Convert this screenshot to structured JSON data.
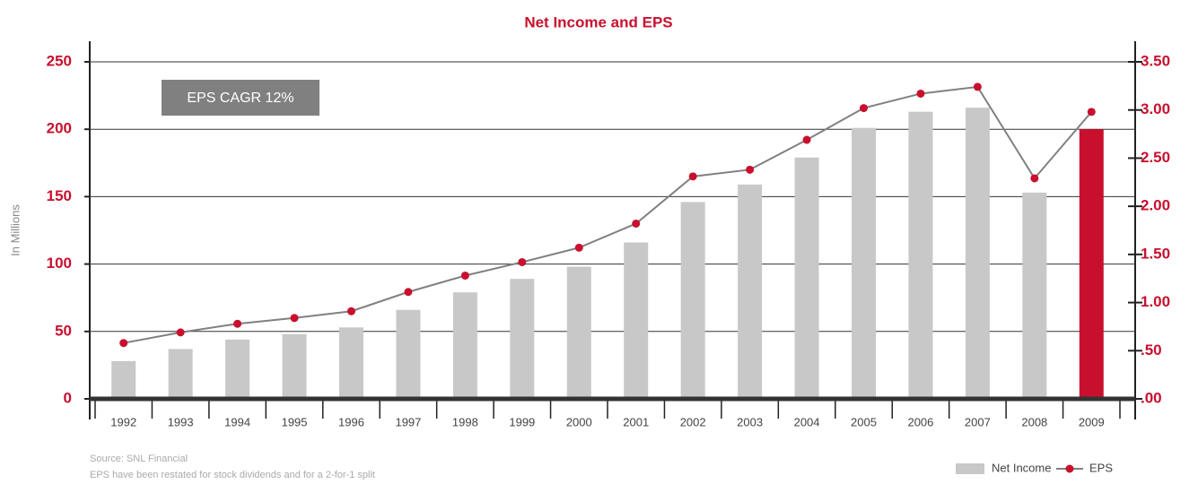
{
  "chart_data": {
    "type": "bar_line",
    "title": "Net Income and EPS",
    "y_label": "In Millions",
    "annotation": "EPS CAGR 12%",
    "notes": [
      "Source: SNL Financial",
      "EPS have been restated for stock dividends and for a 2-for-1 split"
    ],
    "categories": [
      "1992",
      "1993",
      "1994",
      "1995",
      "1996",
      "1997",
      "1998",
      "1999",
      "2000",
      "2001",
      "2002",
      "2003",
      "2004",
      "2005",
      "2006",
      "2007",
      "2008",
      "2009"
    ],
    "series": [
      {
        "name": "Net Income",
        "type": "bar",
        "color": "#c8c8c8",
        "colors": [
          "#c8c8c8",
          "#c8c8c8",
          "#c8c8c8",
          "#c8c8c8",
          "#c8c8c8",
          "#c8c8c8",
          "#c8c8c8",
          "#c8c8c8",
          "#c8c8c8",
          "#c8c8c8",
          "#c8c8c8",
          "#c8c8c8",
          "#c8c8c8",
          "#c8c8c8",
          "#c8c8c8",
          "#c8c8c8",
          "#c8c8c8",
          "#c8102e"
        ],
        "values": [
          28,
          37,
          44,
          48,
          53,
          66,
          79,
          89,
          98,
          116,
          146,
          159,
          179,
          201,
          213,
          216,
          153,
          200
        ]
      },
      {
        "name": "EPS",
        "type": "line",
        "axis": "y2",
        "color": "#808080",
        "marker_color": "#c8102e",
        "values": [
          0.58,
          0.69,
          0.78,
          0.84,
          0.91,
          1.11,
          1.28,
          1.42,
          1.57,
          1.82,
          2.31,
          2.38,
          2.69,
          3.02,
          3.17,
          3.24,
          2.29,
          2.98
        ]
      }
    ],
    "ylim": [
      0,
      250
    ],
    "yticks": [
      0,
      50,
      100,
      150,
      200,
      250
    ],
    "y2lim": [
      0,
      3.5
    ],
    "y2ticks": [
      {
        "value": 0,
        "label": ".00"
      },
      {
        "value": 0.5,
        "label": ".50"
      },
      {
        "value": 1,
        "label": "1.00"
      },
      {
        "value": 1.5,
        "label": "1.50"
      },
      {
        "value": 2,
        "label": "2.00"
      },
      {
        "value": 2.5,
        "label": "2.50"
      },
      {
        "value": 3,
        "label": "3.00"
      },
      {
        "value": 3.5,
        "label": "3.50"
      }
    ],
    "grid": true,
    "legend": "bottom-right"
  }
}
